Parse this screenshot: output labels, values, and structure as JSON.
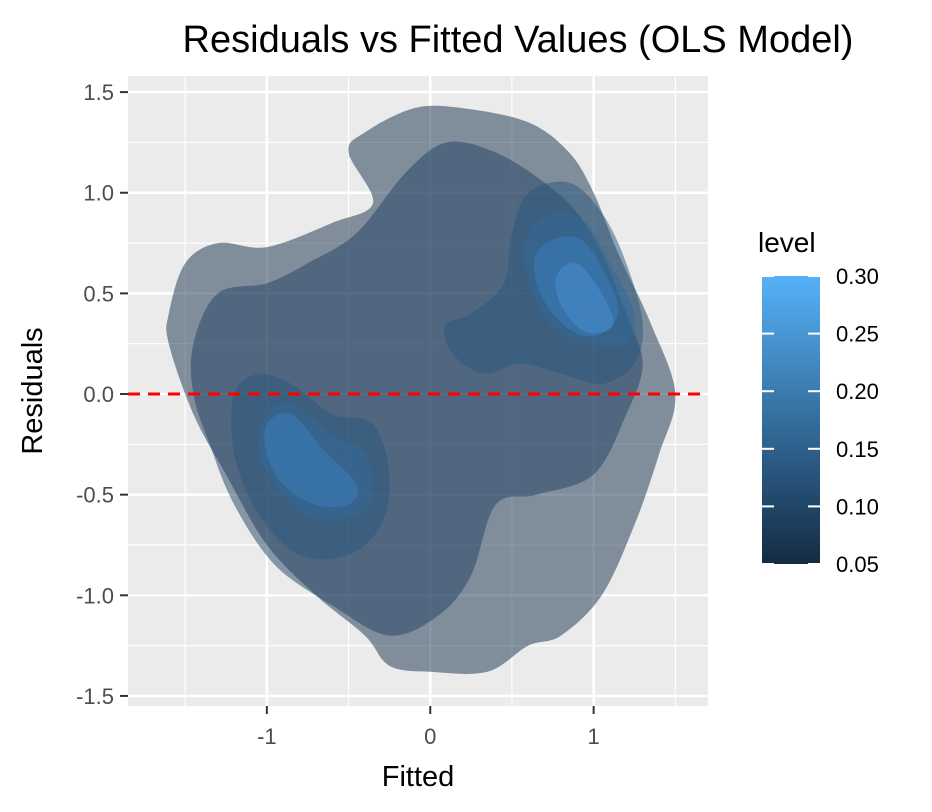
{
  "chart_data": {
    "type": "contour",
    "title": "Residuals vs Fitted Values (OLS Model)",
    "xlabel": "Fitted",
    "ylabel": "Residuals",
    "xlim": [
      -1.85,
      1.7
    ],
    "ylim": [
      -1.55,
      1.58
    ],
    "x_ticks": [
      -1,
      0,
      1
    ],
    "x_tick_labels": [
      "-1",
      "0",
      "1"
    ],
    "y_ticks": [
      -1.5,
      -1.0,
      -0.5,
      0.0,
      0.5,
      1.0,
      1.5
    ],
    "y_tick_labels": [
      "-1.5",
      "-1.0",
      "-0.5",
      "0.0",
      "0.5",
      "1.0",
      "1.5"
    ],
    "grid": true,
    "reference_line": {
      "y": 0,
      "color": "#ff0000",
      "style": "dashed"
    },
    "legend": {
      "title": "level",
      "position": "right",
      "range": [
        0.05,
        0.3
      ],
      "ticks": [
        0.3,
        0.25,
        0.2,
        0.15,
        0.1,
        0.05
      ],
      "tick_labels": [
        "0.30",
        "0.25",
        "0.20",
        "0.15",
        "0.10",
        "0.05"
      ],
      "color_low": "#132B43",
      "color_high": "#56B1F7"
    },
    "contours": [
      {
        "level": 0.05,
        "color": "#16304a",
        "polygons": [
          [
            [
              -1.6,
              0.4
            ],
            [
              -1.5,
              0.65
            ],
            [
              -1.3,
              0.75
            ],
            [
              -1.0,
              0.73
            ],
            [
              -0.6,
              0.85
            ],
            [
              -0.35,
              0.95
            ],
            [
              -0.5,
              1.2
            ],
            [
              -0.4,
              1.3
            ],
            [
              -0.1,
              1.42
            ],
            [
              0.2,
              1.42
            ],
            [
              0.6,
              1.35
            ],
            [
              0.85,
              1.2
            ],
            [
              1.0,
              1.0
            ],
            [
              1.15,
              0.7
            ],
            [
              1.35,
              0.35
            ],
            [
              1.5,
              0.0
            ],
            [
              1.4,
              -0.3
            ],
            [
              1.25,
              -0.65
            ],
            [
              1.05,
              -1.0
            ],
            [
              0.8,
              -1.2
            ],
            [
              0.6,
              -1.25
            ],
            [
              0.35,
              -1.38
            ],
            [
              0.0,
              -1.38
            ],
            [
              -0.25,
              -1.35
            ],
            [
              -0.4,
              -1.2
            ],
            [
              -0.7,
              -1.0
            ],
            [
              -1.0,
              -0.75
            ],
            [
              -1.25,
              -0.4
            ],
            [
              -1.45,
              -0.1
            ],
            [
              -1.6,
              0.25
            ]
          ]
        ]
      },
      {
        "level": 0.1,
        "color": "#1f4163",
        "polygons": [
          [
            [
              -1.45,
              0.25
            ],
            [
              -1.3,
              0.5
            ],
            [
              -1.0,
              0.55
            ],
            [
              -0.75,
              0.65
            ],
            [
              -0.45,
              0.8
            ],
            [
              -0.15,
              1.1
            ],
            [
              0.1,
              1.25
            ],
            [
              0.4,
              1.2
            ],
            [
              0.7,
              1.05
            ],
            [
              0.9,
              0.9
            ],
            [
              1.05,
              0.7
            ],
            [
              1.2,
              0.4
            ],
            [
              1.3,
              0.15
            ],
            [
              1.2,
              -0.1
            ],
            [
              1.0,
              -0.4
            ],
            [
              0.65,
              -0.5
            ],
            [
              0.4,
              -0.55
            ],
            [
              0.25,
              -0.9
            ],
            [
              0.05,
              -1.1
            ],
            [
              -0.25,
              -1.2
            ],
            [
              -0.6,
              -1.05
            ],
            [
              -0.95,
              -0.85
            ],
            [
              -1.2,
              -0.55
            ],
            [
              -1.35,
              -0.25
            ],
            [
              -1.45,
              0.0
            ]
          ]
        ]
      },
      {
        "level": 0.15,
        "color": "#295780",
        "polygons": [
          [
            [
              -1.2,
              0.0
            ],
            [
              -1.05,
              0.1
            ],
            [
              -0.85,
              0.05
            ],
            [
              -0.6,
              -0.1
            ],
            [
              -0.35,
              -0.15
            ],
            [
              -0.25,
              -0.4
            ],
            [
              -0.3,
              -0.65
            ],
            [
              -0.5,
              -0.8
            ],
            [
              -0.8,
              -0.8
            ],
            [
              -1.05,
              -0.6
            ],
            [
              -1.2,
              -0.3
            ]
          ],
          [
            [
              0.1,
              0.35
            ],
            [
              0.25,
              0.4
            ],
            [
              0.45,
              0.55
            ],
            [
              0.5,
              0.8
            ],
            [
              0.6,
              1.0
            ],
            [
              0.85,
              1.05
            ],
            [
              1.05,
              0.9
            ],
            [
              1.2,
              0.65
            ],
            [
              1.3,
              0.35
            ],
            [
              1.25,
              0.15
            ],
            [
              1.05,
              0.05
            ],
            [
              0.8,
              0.1
            ],
            [
              0.55,
              0.15
            ],
            [
              0.35,
              0.1
            ],
            [
              0.2,
              0.15
            ],
            [
              0.1,
              0.25
            ]
          ]
        ]
      },
      {
        "level": 0.2,
        "color": "#31699b",
        "polygons": [
          [
            [
              -1.0,
              -0.1
            ],
            [
              -0.85,
              -0.05
            ],
            [
              -0.6,
              -0.2
            ],
            [
              -0.4,
              -0.3
            ],
            [
              -0.35,
              -0.5
            ],
            [
              -0.45,
              -0.6
            ],
            [
              -0.7,
              -0.62
            ],
            [
              -0.9,
              -0.5
            ],
            [
              -1.05,
              -0.3
            ]
          ],
          [
            [
              0.6,
              0.8
            ],
            [
              0.75,
              0.9
            ],
            [
              0.95,
              0.85
            ],
            [
              1.1,
              0.65
            ],
            [
              1.25,
              0.4
            ],
            [
              1.2,
              0.25
            ],
            [
              1.0,
              0.25
            ],
            [
              0.8,
              0.3
            ],
            [
              0.65,
              0.45
            ],
            [
              0.58,
              0.65
            ]
          ]
        ]
      },
      {
        "level": 0.25,
        "color": "#3a7ebe",
        "polygons": [
          [
            [
              -1.0,
              -0.15
            ],
            [
              -0.85,
              -0.1
            ],
            [
              -0.65,
              -0.28
            ],
            [
              -0.45,
              -0.45
            ],
            [
              -0.5,
              -0.55
            ],
            [
              -0.7,
              -0.55
            ],
            [
              -0.9,
              -0.45
            ],
            [
              -1.0,
              -0.3
            ]
          ],
          [
            [
              0.65,
              0.7
            ],
            [
              0.8,
              0.78
            ],
            [
              0.95,
              0.75
            ],
            [
              1.1,
              0.55
            ],
            [
              1.15,
              0.4
            ],
            [
              1.05,
              0.3
            ],
            [
              0.9,
              0.3
            ],
            [
              0.75,
              0.4
            ],
            [
              0.65,
              0.55
            ]
          ]
        ]
      },
      {
        "level": 0.28,
        "color": "#4590d6",
        "polygons": [
          [
            [
              0.78,
              0.6
            ],
            [
              0.9,
              0.65
            ],
            [
              1.05,
              0.5
            ],
            [
              1.12,
              0.35
            ],
            [
              1.0,
              0.3
            ],
            [
              0.88,
              0.35
            ],
            [
              0.78,
              0.48
            ]
          ]
        ]
      }
    ]
  }
}
